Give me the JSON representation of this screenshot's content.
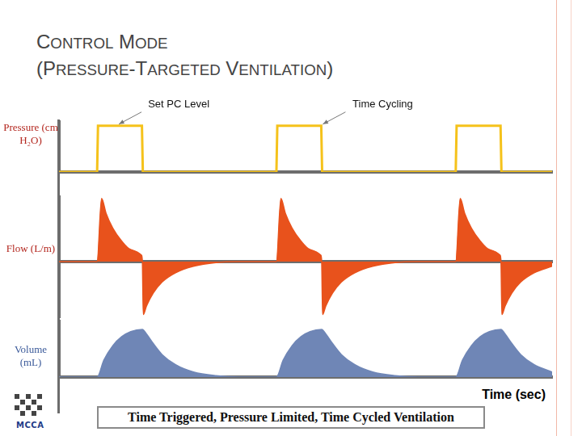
{
  "slide": {
    "title": [
      "CONTROL MODE",
      "(PRESSURE-TARGETED VENTILATION)"
    ],
    "caption": "Time Triggered, Pressure Limited, Time Cycled Ventilation",
    "logo": "MCCA"
  },
  "chart_data": [
    {
      "type": "line",
      "ylabel": "Pressure (cm H₂O)",
      "color": "#f5c21b",
      "marker": "none",
      "line_style": "solid",
      "grid": false,
      "tick_labels": false,
      "xlim": [
        0,
        11
      ],
      "ylim": [
        0,
        22
      ],
      "x": [
        0,
        0.85,
        0.87,
        1.85,
        1.87,
        4.85,
        4.87,
        5.85,
        5.87,
        8.85,
        8.87,
        9.85,
        9.87,
        11
      ],
      "values": [
        0,
        0,
        20,
        20,
        0,
        0,
        20,
        20,
        0,
        0,
        20,
        20,
        0,
        0
      ],
      "annotations": [
        {
          "text": "Set PC Level",
          "x": 1.3,
          "y": 20
        },
        {
          "text": "Time Cycling",
          "x": 5.85,
          "y": 20
        }
      ]
    },
    {
      "type": "area",
      "ylabel": "Flow (L/m)",
      "color": "#e8521c",
      "marker": "none",
      "line_style": "solid",
      "grid": false,
      "tick_labels": false,
      "xlim": [
        0,
        11
      ],
      "ylim": [
        -60,
        70
      ],
      "x": [
        0,
        0.85,
        0.95,
        1.05,
        1.2,
        1.4,
        1.6,
        1.84,
        1.86,
        1.88,
        1.95,
        2.1,
        2.3,
        2.6,
        3.0,
        3.5,
        4.0,
        4.85,
        4.95,
        5.05,
        5.2,
        5.4,
        5.6,
        5.84,
        5.86,
        5.88,
        5.95,
        6.1,
        6.3,
        6.6,
        7.0,
        7.5,
        8.0,
        8.85,
        8.95,
        9.05,
        9.2,
        9.4,
        9.6,
        9.84,
        9.86,
        9.88,
        9.95,
        10.1,
        10.3,
        10.6,
        11.0
      ],
      "values": [
        0,
        0,
        68,
        52,
        36,
        22,
        13,
        7,
        0,
        -57,
        -48,
        -34,
        -22,
        -12,
        -5,
        -1,
        0,
        0,
        68,
        52,
        36,
        22,
        13,
        7,
        0,
        -57,
        -48,
        -34,
        -22,
        -12,
        -5,
        -1,
        0,
        0,
        68,
        52,
        36,
        22,
        13,
        7,
        0,
        -57,
        -48,
        -34,
        -22,
        -12,
        -5
      ]
    },
    {
      "type": "area",
      "ylabel": "Volume (mL)",
      "xlabel": "Time (sec)",
      "color": "#6f86b6",
      "marker": "none",
      "line_style": "solid",
      "grid": false,
      "tick_labels": false,
      "xlim": [
        0,
        11
      ],
      "ylim": [
        0,
        500
      ],
      "x": [
        0,
        0.85,
        1.0,
        1.2,
        1.4,
        1.6,
        1.86,
        1.95,
        2.1,
        2.3,
        2.6,
        3.0,
        3.5,
        4.0,
        4.85,
        5.0,
        5.2,
        5.4,
        5.6,
        5.86,
        5.95,
        6.1,
        6.3,
        6.6,
        7.0,
        7.5,
        8.0,
        8.85,
        9.0,
        9.2,
        9.4,
        9.6,
        9.86,
        9.95,
        10.1,
        10.3,
        10.6,
        11.0
      ],
      "values": [
        0,
        0,
        150,
        280,
        360,
        405,
        425,
        385,
        300,
        200,
        110,
        45,
        12,
        0,
        0,
        150,
        280,
        360,
        405,
        425,
        385,
        300,
        200,
        110,
        45,
        12,
        0,
        0,
        150,
        280,
        360,
        405,
        425,
        385,
        300,
        200,
        110,
        45
      ]
    }
  ]
}
